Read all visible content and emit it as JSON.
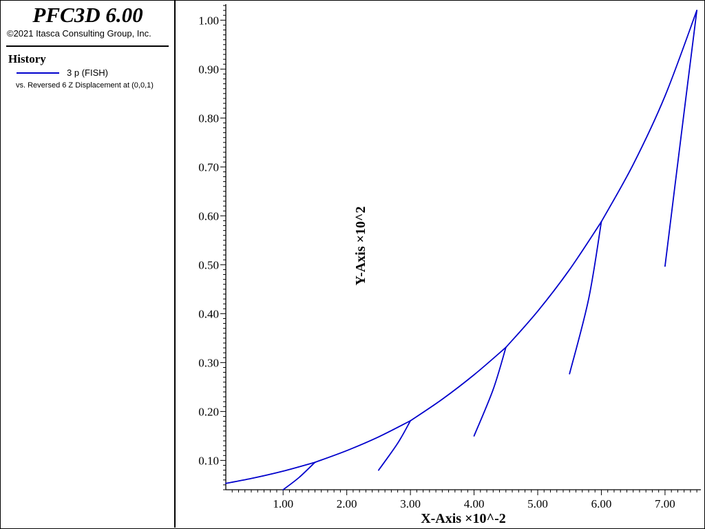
{
  "header": {
    "app_title": "PFC3D 6.00",
    "copyright": "©2021 Itasca Consulting Group, Inc."
  },
  "legend": {
    "heading": "History",
    "series_label": "3 p (FISH)",
    "vs_label": "vs. Reversed 6 Z Displacement at (0,0,1)"
  },
  "colors": {
    "series": "#0000cc",
    "axis": "#000000",
    "background": "#ffffff"
  },
  "chart_data": {
    "type": "line",
    "xlabel": "X-Axis ×10^-2",
    "ylabel": "Y-Axis ×10^2",
    "xlim": [
      0.1,
      7.52
    ],
    "ylim": [
      0.04,
      1.03
    ],
    "x_ticks": [
      1.0,
      2.0,
      3.0,
      4.0,
      5.0,
      6.0,
      7.0
    ],
    "x_tick_labels": [
      "1.00",
      "2.00",
      "3.00",
      "4.00",
      "5.00",
      "6.00",
      "7.00"
    ],
    "y_ticks": [
      0.1,
      0.2,
      0.3,
      0.4,
      0.5,
      0.6,
      0.7,
      0.8,
      0.9,
      1.0
    ],
    "y_tick_labels": [
      "0.10",
      "0.20",
      "0.30",
      "0.40",
      "0.50",
      "0.60",
      "0.70",
      "0.80",
      "0.90",
      "1.00"
    ],
    "grid": false,
    "legend_position": "left panel",
    "series": [
      {
        "segments": [
          {
            "x": [
              0.1,
              0.5,
              1.0,
              1.5
            ],
            "y": [
              0.053,
              0.063,
              0.078,
              0.096
            ]
          },
          {
            "x": [
              1.0,
              1.25,
              1.5
            ],
            "y": [
              0.04,
              0.065,
              0.096
            ]
          },
          {
            "x": [
              1.5,
              2.0,
              2.5,
              3.0
            ],
            "y": [
              0.096,
              0.12,
              0.148,
              0.181
            ]
          },
          {
            "x": [
              2.5,
              2.8,
              3.0
            ],
            "y": [
              0.08,
              0.135,
              0.181
            ]
          },
          {
            "x": [
              3.0,
              3.5,
              4.0,
              4.5
            ],
            "y": [
              0.181,
              0.225,
              0.275,
              0.331
            ]
          },
          {
            "x": [
              4.0,
              4.3,
              4.5
            ],
            "y": [
              0.15,
              0.245,
              0.331
            ]
          },
          {
            "x": [
              4.5,
              5.0,
              5.5,
              6.0
            ],
            "y": [
              0.331,
              0.405,
              0.49,
              0.588
            ]
          },
          {
            "x": [
              5.5,
              5.8,
              6.0
            ],
            "y": [
              0.277,
              0.43,
              0.588
            ]
          },
          {
            "x": [
              6.0,
              6.5,
              7.0,
              7.5
            ],
            "y": [
              0.588,
              0.705,
              0.845,
              1.02
            ]
          },
          {
            "x": [
              7.0,
              7.25,
              7.5
            ],
            "y": [
              0.497,
              0.76,
              1.02
            ]
          }
        ]
      }
    ]
  }
}
